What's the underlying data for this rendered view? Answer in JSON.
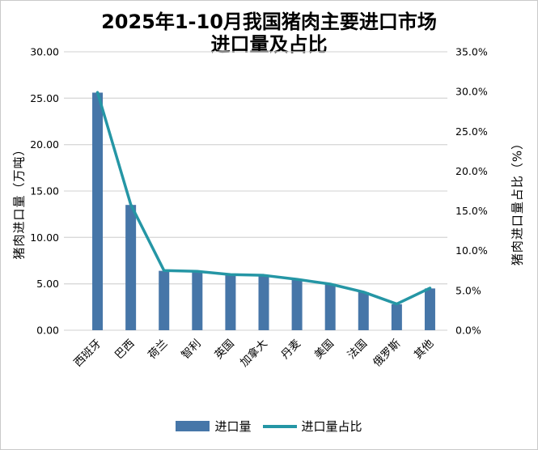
{
  "ui": {
    "title_lines": [
      "2025年1-10月我国猪肉主要进口市场",
      "进口量及占比"
    ],
    "colors": {
      "bar": "#4676A8",
      "line": "#2596A5",
      "grid": "#D9D9D9",
      "border": "#C9C9C9",
      "text": "#000000",
      "background": "#FFFFFF"
    }
  },
  "chart_data": {
    "type": "bar",
    "subtype": "bar-line-combo",
    "title": "2025年1-10月我国猪肉主要进口市场进口量及占比",
    "categories": [
      "西班牙",
      "巴西",
      "荷兰",
      "智利",
      "英国",
      "加拿大",
      "丹麦",
      "美国",
      "法国",
      "俄罗斯",
      "其他"
    ],
    "series": [
      {
        "name": "进口量",
        "type": "bar",
        "axis": "left",
        "unit": "万吨",
        "values": [
          25.6,
          13.5,
          6.4,
          6.3,
          6.0,
          5.9,
          5.5,
          5.0,
          4.1,
          2.8,
          4.5
        ]
      },
      {
        "name": "进口量占比",
        "type": "line",
        "axis": "right",
        "unit": "%",
        "values": [
          29.9,
          15.8,
          7.5,
          7.4,
          7.0,
          6.9,
          6.4,
          5.8,
          4.8,
          3.3,
          5.3
        ]
      }
    ],
    "left_axis": {
      "label": "猪肉进口量（万吨）",
      "min": 0,
      "max": 30,
      "ticks": [
        "0.00",
        "5.00",
        "10.00",
        "15.00",
        "20.00",
        "25.00",
        "30.00"
      ]
    },
    "right_axis": {
      "label": "猪肉进口量占比（%）",
      "min": 0,
      "max": 35,
      "ticks": [
        "0.0%",
        "5.0%",
        "10.0%",
        "15.0%",
        "20.0%",
        "25.0%",
        "30.0%",
        "35.0%"
      ]
    },
    "grid": true,
    "legend_position": "bottom",
    "x_label_rotation_deg": -45
  }
}
